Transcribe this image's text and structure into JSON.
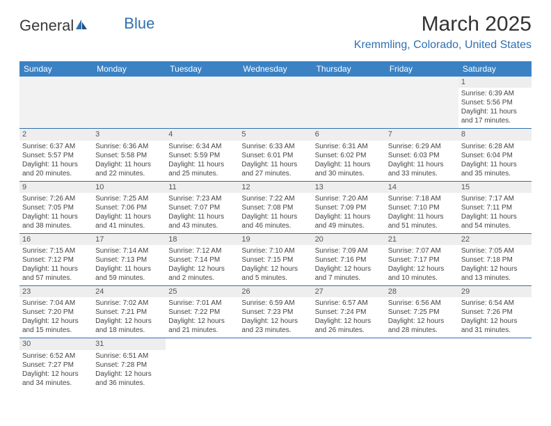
{
  "brand": {
    "part1": "General",
    "part2": "Blue"
  },
  "title": "March 2025",
  "location": "Kremmling, Colorado, United States",
  "colors": {
    "header_bg": "#3b82c4",
    "accent": "#2f6fb0",
    "row_alt": "#f2f2f2",
    "daynum_bg": "#eeeeee"
  },
  "dayNames": [
    "Sunday",
    "Monday",
    "Tuesday",
    "Wednesday",
    "Thursday",
    "Friday",
    "Saturday"
  ],
  "weeks": [
    [
      null,
      null,
      null,
      null,
      null,
      null,
      {
        "n": "1",
        "sr": "Sunrise: 6:39 AM",
        "ss": "Sunset: 5:56 PM",
        "dl1": "Daylight: 11 hours",
        "dl2": "and 17 minutes."
      }
    ],
    [
      {
        "n": "2",
        "sr": "Sunrise: 6:37 AM",
        "ss": "Sunset: 5:57 PM",
        "dl1": "Daylight: 11 hours",
        "dl2": "and 20 minutes."
      },
      {
        "n": "3",
        "sr": "Sunrise: 6:36 AM",
        "ss": "Sunset: 5:58 PM",
        "dl1": "Daylight: 11 hours",
        "dl2": "and 22 minutes."
      },
      {
        "n": "4",
        "sr": "Sunrise: 6:34 AM",
        "ss": "Sunset: 5:59 PM",
        "dl1": "Daylight: 11 hours",
        "dl2": "and 25 minutes."
      },
      {
        "n": "5",
        "sr": "Sunrise: 6:33 AM",
        "ss": "Sunset: 6:01 PM",
        "dl1": "Daylight: 11 hours",
        "dl2": "and 27 minutes."
      },
      {
        "n": "6",
        "sr": "Sunrise: 6:31 AM",
        "ss": "Sunset: 6:02 PM",
        "dl1": "Daylight: 11 hours",
        "dl2": "and 30 minutes."
      },
      {
        "n": "7",
        "sr": "Sunrise: 6:29 AM",
        "ss": "Sunset: 6:03 PM",
        "dl1": "Daylight: 11 hours",
        "dl2": "and 33 minutes."
      },
      {
        "n": "8",
        "sr": "Sunrise: 6:28 AM",
        "ss": "Sunset: 6:04 PM",
        "dl1": "Daylight: 11 hours",
        "dl2": "and 35 minutes."
      }
    ],
    [
      {
        "n": "9",
        "sr": "Sunrise: 7:26 AM",
        "ss": "Sunset: 7:05 PM",
        "dl1": "Daylight: 11 hours",
        "dl2": "and 38 minutes."
      },
      {
        "n": "10",
        "sr": "Sunrise: 7:25 AM",
        "ss": "Sunset: 7:06 PM",
        "dl1": "Daylight: 11 hours",
        "dl2": "and 41 minutes."
      },
      {
        "n": "11",
        "sr": "Sunrise: 7:23 AM",
        "ss": "Sunset: 7:07 PM",
        "dl1": "Daylight: 11 hours",
        "dl2": "and 43 minutes."
      },
      {
        "n": "12",
        "sr": "Sunrise: 7:22 AM",
        "ss": "Sunset: 7:08 PM",
        "dl1": "Daylight: 11 hours",
        "dl2": "and 46 minutes."
      },
      {
        "n": "13",
        "sr": "Sunrise: 7:20 AM",
        "ss": "Sunset: 7:09 PM",
        "dl1": "Daylight: 11 hours",
        "dl2": "and 49 minutes."
      },
      {
        "n": "14",
        "sr": "Sunrise: 7:18 AM",
        "ss": "Sunset: 7:10 PM",
        "dl1": "Daylight: 11 hours",
        "dl2": "and 51 minutes."
      },
      {
        "n": "15",
        "sr": "Sunrise: 7:17 AM",
        "ss": "Sunset: 7:11 PM",
        "dl1": "Daylight: 11 hours",
        "dl2": "and 54 minutes."
      }
    ],
    [
      {
        "n": "16",
        "sr": "Sunrise: 7:15 AM",
        "ss": "Sunset: 7:12 PM",
        "dl1": "Daylight: 11 hours",
        "dl2": "and 57 minutes."
      },
      {
        "n": "17",
        "sr": "Sunrise: 7:14 AM",
        "ss": "Sunset: 7:13 PM",
        "dl1": "Daylight: 11 hours",
        "dl2": "and 59 minutes."
      },
      {
        "n": "18",
        "sr": "Sunrise: 7:12 AM",
        "ss": "Sunset: 7:14 PM",
        "dl1": "Daylight: 12 hours",
        "dl2": "and 2 minutes."
      },
      {
        "n": "19",
        "sr": "Sunrise: 7:10 AM",
        "ss": "Sunset: 7:15 PM",
        "dl1": "Daylight: 12 hours",
        "dl2": "and 5 minutes."
      },
      {
        "n": "20",
        "sr": "Sunrise: 7:09 AM",
        "ss": "Sunset: 7:16 PM",
        "dl1": "Daylight: 12 hours",
        "dl2": "and 7 minutes."
      },
      {
        "n": "21",
        "sr": "Sunrise: 7:07 AM",
        "ss": "Sunset: 7:17 PM",
        "dl1": "Daylight: 12 hours",
        "dl2": "and 10 minutes."
      },
      {
        "n": "22",
        "sr": "Sunrise: 7:05 AM",
        "ss": "Sunset: 7:18 PM",
        "dl1": "Daylight: 12 hours",
        "dl2": "and 13 minutes."
      }
    ],
    [
      {
        "n": "23",
        "sr": "Sunrise: 7:04 AM",
        "ss": "Sunset: 7:20 PM",
        "dl1": "Daylight: 12 hours",
        "dl2": "and 15 minutes."
      },
      {
        "n": "24",
        "sr": "Sunrise: 7:02 AM",
        "ss": "Sunset: 7:21 PM",
        "dl1": "Daylight: 12 hours",
        "dl2": "and 18 minutes."
      },
      {
        "n": "25",
        "sr": "Sunrise: 7:01 AM",
        "ss": "Sunset: 7:22 PM",
        "dl1": "Daylight: 12 hours",
        "dl2": "and 21 minutes."
      },
      {
        "n": "26",
        "sr": "Sunrise: 6:59 AM",
        "ss": "Sunset: 7:23 PM",
        "dl1": "Daylight: 12 hours",
        "dl2": "and 23 minutes."
      },
      {
        "n": "27",
        "sr": "Sunrise: 6:57 AM",
        "ss": "Sunset: 7:24 PM",
        "dl1": "Daylight: 12 hours",
        "dl2": "and 26 minutes."
      },
      {
        "n": "28",
        "sr": "Sunrise: 6:56 AM",
        "ss": "Sunset: 7:25 PM",
        "dl1": "Daylight: 12 hours",
        "dl2": "and 28 minutes."
      },
      {
        "n": "29",
        "sr": "Sunrise: 6:54 AM",
        "ss": "Sunset: 7:26 PM",
        "dl1": "Daylight: 12 hours",
        "dl2": "and 31 minutes."
      }
    ],
    [
      {
        "n": "30",
        "sr": "Sunrise: 6:52 AM",
        "ss": "Sunset: 7:27 PM",
        "dl1": "Daylight: 12 hours",
        "dl2": "and 34 minutes."
      },
      {
        "n": "31",
        "sr": "Sunrise: 6:51 AM",
        "ss": "Sunset: 7:28 PM",
        "dl1": "Daylight: 12 hours",
        "dl2": "and 36 minutes."
      },
      null,
      null,
      null,
      null,
      null
    ]
  ]
}
